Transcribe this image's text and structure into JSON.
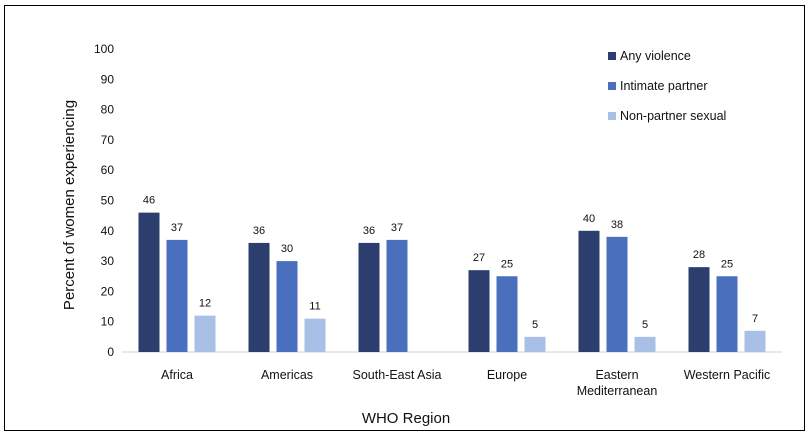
{
  "chart_data": {
    "type": "bar",
    "title": "",
    "xlabel": "WHO Region",
    "ylabel": "Percent of women experiencing",
    "ylim": [
      0,
      100
    ],
    "yticks": [
      0,
      10,
      20,
      30,
      40,
      50,
      60,
      70,
      80,
      90,
      100
    ],
    "grid": false,
    "legend_position": "top-right",
    "categories": [
      [
        "Africa"
      ],
      [
        "Americas"
      ],
      [
        "South-East Asia"
      ],
      [
        "Europe"
      ],
      [
        "Eastern",
        "Mediterranean"
      ],
      [
        "Western Pacific"
      ]
    ],
    "series": [
      {
        "name": "Any violence",
        "color": "#2c3e6e",
        "values": [
          46,
          36,
          36,
          27,
          40,
          28
        ],
        "labels": [
          "46",
          "36",
          "36",
          "27",
          "40",
          "28"
        ]
      },
      {
        "name": "Intimate partner",
        "color": "#4a6fbd",
        "values": [
          37,
          30,
          37,
          25,
          38,
          25
        ],
        "labels": [
          "37",
          "30",
          "37",
          "25",
          "38",
          "25"
        ]
      },
      {
        "name": "Non-partner sexual",
        "color": "#a8c0e6",
        "values": [
          12,
          11,
          null,
          5,
          5,
          7
        ],
        "labels": [
          "12",
          "11",
          "",
          "5",
          "5",
          "7"
        ]
      }
    ]
  }
}
